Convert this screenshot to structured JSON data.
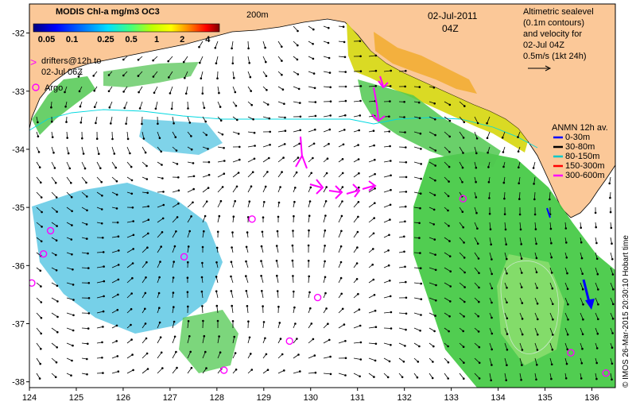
{
  "map": {
    "colorbar": {
      "title": "MODIS Chl-a mg/m3 OC3",
      "tick_labels": [
        "0.05",
        "0.1",
        "0.25",
        "0.5",
        "1",
        "2",
        "4"
      ],
      "tick_values": [
        0.05,
        0.1,
        0.25,
        0.5,
        1,
        2,
        4
      ],
      "scale": "log",
      "colors": [
        "#00007f",
        "#0000ff",
        "#0080ff",
        "#00e0ff",
        "#40ff80",
        "#c0ff00",
        "#ffff00",
        "#ff8000",
        "#ff0000",
        "#7f0000"
      ]
    },
    "depth_contour_label": "200m",
    "date": "02-Jul-2011",
    "time": "04Z",
    "altimetry_note": {
      "lines": [
        "Altimetric sealevel",
        "(0.1m contours)",
        "and velocity for",
        "02-Jul 04Z"
      ],
      "scale_text": "0.5m/s (1kt 24h)"
    },
    "drifters_legend": {
      "symbol": ">",
      "lines": [
        "drifters@12h to",
        "02-Jul 06Z"
      ],
      "color": "#ff00ff"
    },
    "argo_legend": {
      "symbol": "o",
      "label": "Argo",
      "color": "#ff00ff"
    },
    "anmn_legend": {
      "title": "ANMN 12h av.",
      "items": [
        {
          "label": "0-30m",
          "color": "#0000ff"
        },
        {
          "label": "30-80m",
          "color": "#000000"
        },
        {
          "label": "80-150m",
          "color": "#00c8c8"
        },
        {
          "label": "150-300m",
          "color": "#ff0000"
        },
        {
          "label": "300-600m",
          "color": "#ff00ff"
        }
      ]
    },
    "credit": "© IMOS 26-Mar-2015 20:30:10 Hobart time",
    "x_axis": {
      "ticks": [
        124,
        125,
        126,
        127,
        128,
        129,
        130,
        131,
        132,
        133,
        134,
        135,
        136
      ],
      "range": [
        124,
        136.5
      ]
    },
    "y_axis": {
      "ticks": [
        -32,
        -33,
        -34,
        -35,
        -36,
        -37,
        -38
      ],
      "range": [
        -38.1,
        -31.5
      ]
    },
    "colors": {
      "land": "#fbc898",
      "ocean": "#ffffff",
      "velocity_arrows": "#000000",
      "depth_contour": "#00e0e0",
      "argo_floats": "#ff00ff",
      "drifters": "#ff00ff",
      "chl_low": "#3cc8e8",
      "chl_mid": "#40d040",
      "chl_high": "#c0e000"
    },
    "argo_floats": [
      {
        "lon": 124.45,
        "lat": -35.4
      },
      {
        "lon": 124.3,
        "lat": -35.8
      },
      {
        "lon": 124.05,
        "lat": -36.3
      },
      {
        "lon": 127.3,
        "lat": -35.85
      },
      {
        "lon": 128.75,
        "lat": -35.2
      },
      {
        "lon": 130.15,
        "lat": -36.55
      },
      {
        "lon": 129.55,
        "lat": -37.3
      },
      {
        "lon": 128.15,
        "lat": -37.8
      },
      {
        "lon": 133.25,
        "lat": -34.85
      },
      {
        "lon": 135.55,
        "lat": -37.5
      },
      {
        "lon": 136.3,
        "lat": -37.85
      }
    ]
  }
}
